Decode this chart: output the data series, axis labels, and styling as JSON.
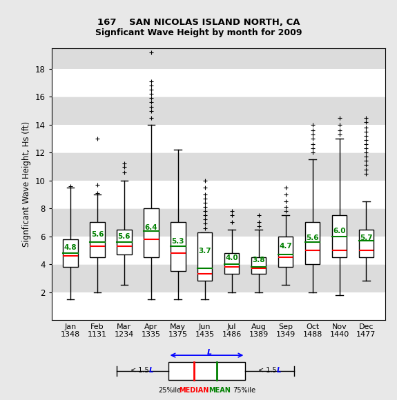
{
  "title1": "167    SAN NICOLAS ISLAND NORTH, CA",
  "title2": "Signficant Wave Height by month for 2009",
  "ylabel": "Signficant Wave Height, Hs (ft)",
  "months": [
    "Jan",
    "Feb",
    "Mar",
    "Apr",
    "May",
    "Jun",
    "Jul",
    "Aug",
    "Sep",
    "Oct",
    "Nov",
    "Dec"
  ],
  "counts": [
    1348,
    1131,
    1234,
    1335,
    1375,
    1435,
    1486,
    1389,
    1349,
    1488,
    1440,
    1477
  ],
  "ylim": [
    0,
    19.5
  ],
  "yticks": [
    2,
    4,
    6,
    8,
    10,
    12,
    14,
    16,
    18
  ],
  "box_data": {
    "Jan": {
      "q1": 3.8,
      "median": 4.6,
      "q3": 5.8,
      "mean": 4.8,
      "whislo": 1.5,
      "whishi": 9.5,
      "fliers": [
        9.6
      ]
    },
    "Feb": {
      "q1": 4.5,
      "median": 5.3,
      "q3": 7.0,
      "mean": 5.6,
      "whislo": 2.0,
      "whishi": 9.0,
      "fliers": [
        9.1,
        9.7,
        13.0
      ]
    },
    "Mar": {
      "q1": 4.7,
      "median": 5.3,
      "q3": 6.5,
      "mean": 5.6,
      "whislo": 2.5,
      "whishi": 10.0,
      "fliers": [
        10.6,
        11.0,
        11.2
      ]
    },
    "Apr": {
      "q1": 4.5,
      "median": 5.8,
      "q3": 8.0,
      "mean": 6.4,
      "whislo": 1.5,
      "whishi": 14.0,
      "fliers": [
        14.5,
        15.0,
        15.3,
        15.6,
        15.9,
        16.2,
        16.5,
        16.8,
        17.1,
        19.2
      ]
    },
    "May": {
      "q1": 3.5,
      "median": 4.8,
      "q3": 7.0,
      "mean": 5.3,
      "whislo": 1.5,
      "whishi": 12.2,
      "fliers": []
    },
    "Jun": {
      "q1": 2.8,
      "median": 3.3,
      "q3": 6.3,
      "mean": 3.7,
      "whislo": 1.5,
      "whishi": 6.3,
      "fliers": [
        6.6,
        6.9,
        7.2,
        7.5,
        7.8,
        8.1,
        8.4,
        8.7,
        9.0,
        9.5,
        10.0
      ]
    },
    "Jul": {
      "q1": 3.3,
      "median": 3.8,
      "q3": 4.8,
      "mean": 4.0,
      "whislo": 2.0,
      "whishi": 6.5,
      "fliers": [
        7.0,
        7.5,
        7.8
      ]
    },
    "Aug": {
      "q1": 3.3,
      "median": 3.7,
      "q3": 4.5,
      "mean": 3.8,
      "whislo": 2.0,
      "whishi": 6.5,
      "fliers": [
        6.7,
        7.0,
        7.5
      ]
    },
    "Sep": {
      "q1": 3.8,
      "median": 4.5,
      "q3": 6.0,
      "mean": 4.7,
      "whislo": 2.5,
      "whishi": 7.5,
      "fliers": [
        7.8,
        8.1,
        8.5,
        9.0,
        9.5
      ]
    },
    "Oct": {
      "q1": 4.0,
      "median": 5.0,
      "q3": 7.0,
      "mean": 5.6,
      "whislo": 2.0,
      "whishi": 11.5,
      "fliers": [
        12.0,
        12.3,
        12.6,
        13.0,
        13.3,
        13.6,
        14.0
      ]
    },
    "Nov": {
      "q1": 4.5,
      "median": 5.0,
      "q3": 7.5,
      "mean": 6.0,
      "whislo": 1.8,
      "whishi": 13.0,
      "fliers": [
        13.3,
        13.6,
        14.0,
        14.5
      ]
    },
    "Dec": {
      "q1": 4.5,
      "median": 5.0,
      "q3": 6.5,
      "mean": 5.7,
      "whislo": 2.8,
      "whishi": 8.5,
      "fliers": [
        10.5,
        10.8,
        11.1,
        11.4,
        11.7,
        12.0,
        12.3,
        12.6,
        12.9,
        13.2,
        13.5,
        13.8,
        14.2,
        14.5
      ]
    }
  },
  "bg_color": "#e8e8e8",
  "band_colors": [
    "white",
    "#e0e0e0"
  ],
  "box_facecolor": "white",
  "median_color": "red",
  "mean_color": "green",
  "flier_color": "red",
  "whisker_color": "black",
  "box_edgecolor": "black"
}
